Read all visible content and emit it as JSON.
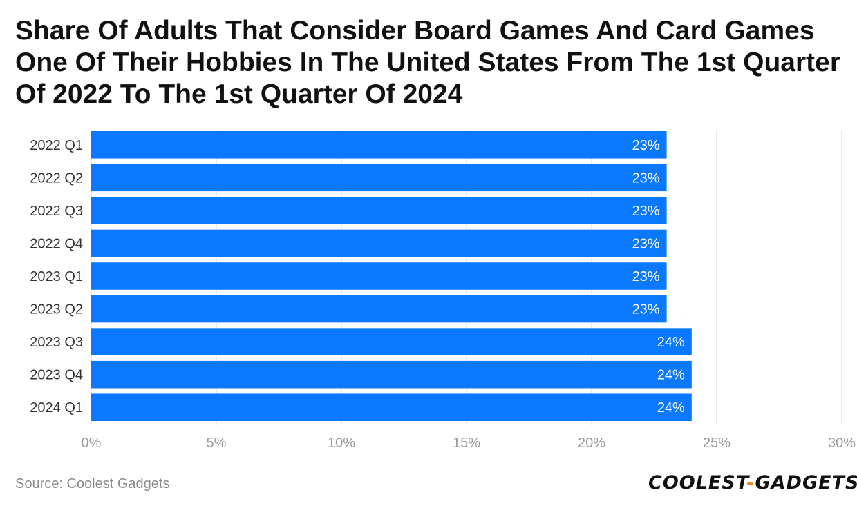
{
  "chart_data": {
    "type": "bar",
    "orientation": "horizontal",
    "title": "Share Of Adults That Consider Board Games And Card Games One Of Their Hobbies In The United States From The 1st Quarter Of 2022 To The 1st Quarter Of 2024",
    "categories": [
      "2022 Q1",
      "2022 Q2",
      "2022 Q3",
      "2022 Q4",
      "2023 Q1",
      "2023 Q2",
      "2023 Q3",
      "2023 Q4",
      "2024 Q1"
    ],
    "values": [
      23,
      23,
      23,
      23,
      23,
      23,
      24,
      24,
      24
    ],
    "data_labels": [
      "23%",
      "23%",
      "23%",
      "23%",
      "23%",
      "23%",
      "24%",
      "24%",
      "24%"
    ],
    "xlim": [
      0,
      30
    ],
    "x_ticks": [
      0,
      5,
      10,
      15,
      20,
      25,
      30
    ],
    "x_tick_labels": [
      "0%",
      "5%",
      "10%",
      "15%",
      "20%",
      "25%",
      "30%"
    ],
    "grid": "vertical",
    "bar_color": "#0a78ff",
    "label_color": "#ffffff"
  },
  "source": "Source: Coolest Gadgets",
  "logo": {
    "part1": "COOLEST",
    "dash": "-",
    "part2": "GADGETS"
  }
}
